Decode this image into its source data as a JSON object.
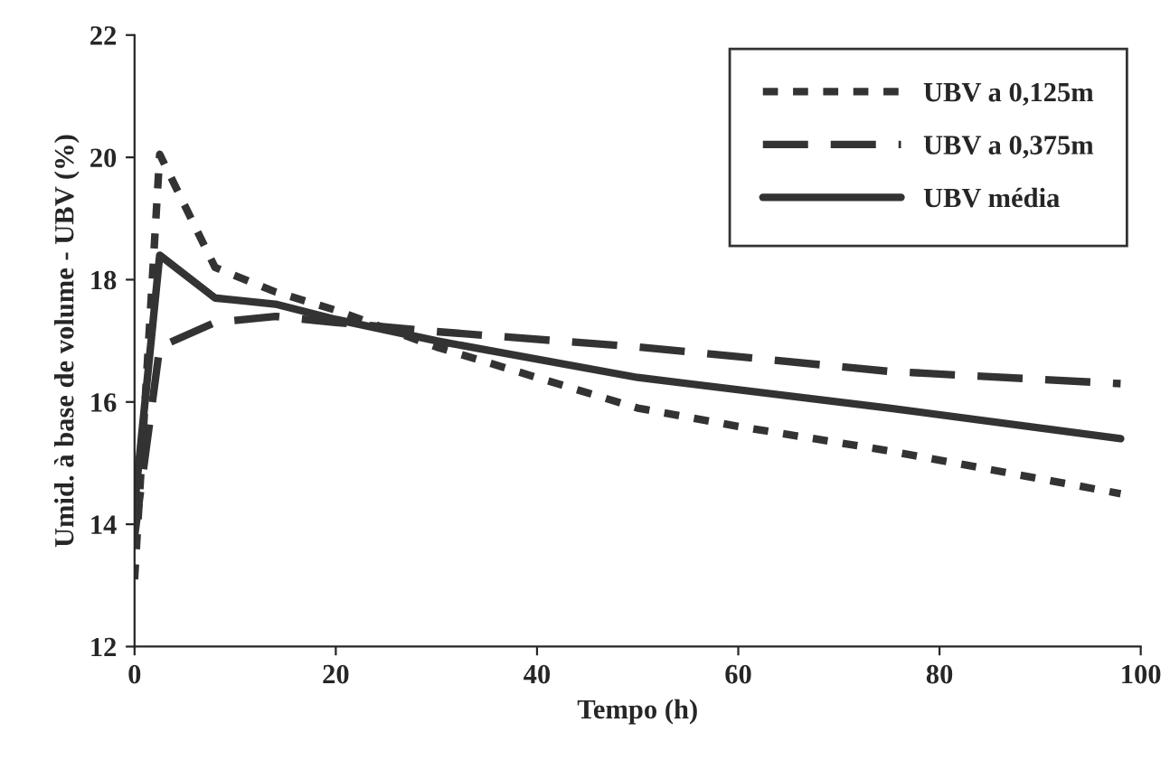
{
  "chart_data": {
    "type": "line",
    "xlabel": "Tempo (h)",
    "ylabel": "Umid. à base de volume - UBV (%)",
    "xlim": [
      0,
      100
    ],
    "xticks": [
      0,
      20,
      40,
      60,
      80,
      100
    ],
    "ylim": [
      12,
      22
    ],
    "yticks": [
      12,
      14,
      16,
      18,
      20,
      22
    ],
    "grid": false,
    "legend": "top right",
    "marker": "none",
    "series": [
      {
        "name": "UBV a 0,125m",
        "color": "#333333",
        "line_style": "dotted",
        "x": [
          0,
          2.5,
          8,
          14,
          20,
          30,
          40,
          50,
          60,
          75,
          98
        ],
        "values": [
          13.1,
          20.05,
          18.2,
          17.8,
          17.5,
          16.9,
          16.4,
          15.9,
          15.6,
          15.2,
          14.5
        ]
      },
      {
        "name": "UBV a 0,375m",
        "color": "#333333",
        "line_style": "dashed",
        "x": [
          0,
          2.5,
          8,
          14,
          20,
          30,
          50,
          75,
          98
        ],
        "values": [
          13.8,
          16.9,
          17.3,
          17.4,
          17.3,
          17.15,
          16.9,
          16.5,
          16.3
        ]
      },
      {
        "name": "UBV média",
        "color": "#333333",
        "line_style": "solid",
        "x": [
          0,
          2.5,
          8,
          14,
          20,
          30,
          50,
          75,
          98
        ],
        "values": [
          14.3,
          18.4,
          17.7,
          17.6,
          17.35,
          17.0,
          16.4,
          15.9,
          15.4
        ]
      }
    ]
  }
}
